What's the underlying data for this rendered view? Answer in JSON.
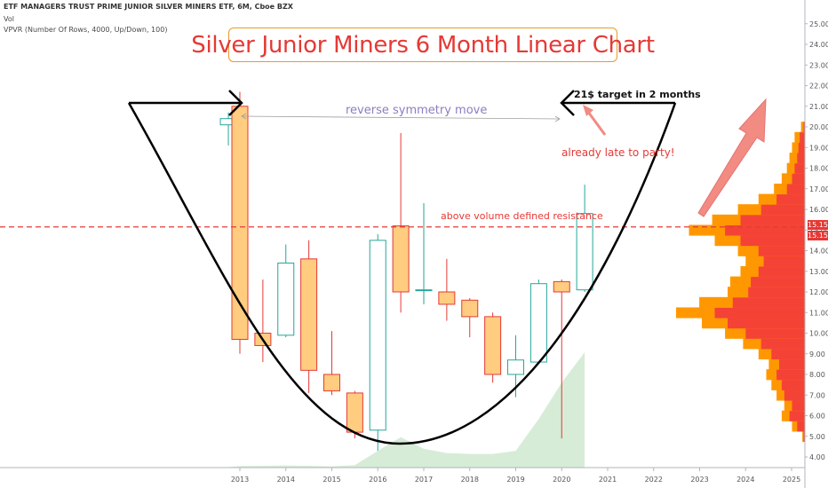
{
  "header": {
    "symbol_line": "ETF MANAGERS TRUST PRIME JUNIOR SILVER MINERS ETF, 6M, Cboe BZX",
    "volume_label": "Vol",
    "vpvr_label": "VPVR (Number Of Rows, 4000, Up/Down, 100)"
  },
  "title": "Silver Junior Miners 6 Month Linear Chart",
  "annotations": {
    "symmetry": "reverse symmetry move",
    "target": "21$ target in 2 months",
    "late": "already late to party!",
    "resistance": "above volume defined resistance"
  },
  "price_tags": [
    "15.15",
    "15.15"
  ],
  "colors": {
    "up_border": "#26a69a",
    "down_fill": "#ffcc80",
    "down_border": "#e53935",
    "resistance": "#e53935",
    "volume": "#c8e6c9",
    "vpvr_up": "#ff9800",
    "vpvr_down": "#f44336",
    "arrow": "#f28b82",
    "cup": "#000000"
  },
  "chart_data": {
    "type": "candlestick",
    "title": "Silver Junior Miners 6 Month Linear Chart",
    "x_ticks": [
      "2013",
      "2014",
      "2015",
      "2016",
      "2017",
      "2018",
      "2019",
      "2020",
      "2021",
      "2022",
      "2023",
      "2024",
      "2025"
    ],
    "y_ticks": [
      4,
      5,
      6,
      7,
      8,
      9,
      10,
      11,
      12,
      13,
      14,
      15,
      16,
      17,
      18,
      19,
      20,
      21,
      22,
      23,
      24,
      25
    ],
    "ylim": [
      3.6,
      25.6
    ],
    "xlim": [
      2011.8,
      2025.4
    ],
    "candles": [
      {
        "t": 2012.75,
        "open": 20.1,
        "high": 20.7,
        "low": 19.1,
        "close": 20.4
      },
      {
        "t": 2013.0,
        "open": 21.0,
        "high": 21.7,
        "low": 9.0,
        "close": 9.7
      },
      {
        "t": 2013.5,
        "open": 10.0,
        "high": 12.6,
        "low": 8.6,
        "close": 9.4
      },
      {
        "t": 2014.0,
        "open": 9.9,
        "high": 14.3,
        "low": 9.8,
        "close": 13.4
      },
      {
        "t": 2014.5,
        "open": 13.6,
        "high": 14.5,
        "low": 7.1,
        "close": 8.2
      },
      {
        "t": 2015.0,
        "open": 8.0,
        "high": 10.1,
        "low": 7.0,
        "close": 7.2
      },
      {
        "t": 2015.5,
        "open": 7.1,
        "high": 7.2,
        "low": 4.9,
        "close": 5.2
      },
      {
        "t": 2016.0,
        "open": 5.3,
        "high": 14.8,
        "low": 4.3,
        "close": 14.5
      },
      {
        "t": 2016.5,
        "open": 15.2,
        "high": 19.7,
        "low": 11.0,
        "close": 12.0
      },
      {
        "t": 2017.0,
        "open": 12.1,
        "high": 16.3,
        "low": 11.4,
        "close": 12.1
      },
      {
        "t": 2017.5,
        "open": 12.0,
        "high": 13.6,
        "low": 10.6,
        "close": 11.4
      },
      {
        "t": 2018.0,
        "open": 11.6,
        "high": 11.7,
        "low": 9.8,
        "close": 10.8
      },
      {
        "t": 2018.5,
        "open": 10.8,
        "high": 11.0,
        "low": 7.6,
        "close": 8.0
      },
      {
        "t": 2019.0,
        "open": 8.0,
        "high": 9.9,
        "low": 6.9,
        "close": 8.7
      },
      {
        "t": 2019.5,
        "open": 8.6,
        "high": 12.6,
        "low": 8.5,
        "close": 12.4
      },
      {
        "t": 2020.0,
        "open": 12.5,
        "high": 12.6,
        "low": 4.9,
        "close": 12.0
      },
      {
        "t": 2020.5,
        "open": 12.1,
        "high": 17.2,
        "low": 12.0,
        "close": 15.8
      }
    ],
    "volume": [
      {
        "t": 2012.75,
        "v": 0.02
      },
      {
        "t": 2013.0,
        "v": 0.05
      },
      {
        "t": 2013.5,
        "v": 0.06
      },
      {
        "t": 2014.0,
        "v": 0.07
      },
      {
        "t": 2014.5,
        "v": 0.06
      },
      {
        "t": 2015.0,
        "v": 0.04
      },
      {
        "t": 2015.5,
        "v": 0.08
      },
      {
        "t": 2016.0,
        "v": 0.55
      },
      {
        "t": 2016.5,
        "v": 1.0
      },
      {
        "t": 2017.0,
        "v": 0.62
      },
      {
        "t": 2017.5,
        "v": 0.48
      },
      {
        "t": 2018.0,
        "v": 0.45
      },
      {
        "t": 2018.5,
        "v": 0.45
      },
      {
        "t": 2019.0,
        "v": 0.55
      },
      {
        "t": 2019.5,
        "v": 1.6
      },
      {
        "t": 2020.0,
        "v": 2.8
      },
      {
        "t": 2020.5,
        "v": 3.8
      }
    ],
    "resistance_level": 15.15,
    "vpvr_profile": [
      {
        "price": 5.0,
        "up": 0.02,
        "down": 0.01
      },
      {
        "price": 5.5,
        "up": 0.1,
        "down": 0.06
      },
      {
        "price": 6.0,
        "up": 0.18,
        "down": 0.12
      },
      {
        "price": 6.5,
        "up": 0.16,
        "down": 0.1
      },
      {
        "price": 7.0,
        "up": 0.22,
        "down": 0.16
      },
      {
        "price": 7.5,
        "up": 0.26,
        "down": 0.18
      },
      {
        "price": 8.0,
        "up": 0.3,
        "down": 0.22
      },
      {
        "price": 8.5,
        "up": 0.28,
        "down": 0.2
      },
      {
        "price": 9.0,
        "up": 0.36,
        "down": 0.26
      },
      {
        "price": 9.5,
        "up": 0.48,
        "down": 0.34
      },
      {
        "price": 10.0,
        "up": 0.62,
        "down": 0.46
      },
      {
        "price": 10.5,
        "up": 0.8,
        "down": 0.6
      },
      {
        "price": 11.0,
        "up": 1.0,
        "down": 0.7
      },
      {
        "price": 11.5,
        "up": 0.82,
        "down": 0.56
      },
      {
        "price": 12.0,
        "up": 0.6,
        "down": 0.44
      },
      {
        "price": 12.5,
        "up": 0.58,
        "down": 0.42
      },
      {
        "price": 13.0,
        "up": 0.5,
        "down": 0.36
      },
      {
        "price": 13.5,
        "up": 0.46,
        "down": 0.32
      },
      {
        "price": 14.0,
        "up": 0.52,
        "down": 0.36
      },
      {
        "price": 14.5,
        "up": 0.7,
        "down": 0.5
      },
      {
        "price": 15.0,
        "up": 0.9,
        "down": 0.62
      },
      {
        "price": 15.5,
        "up": 0.72,
        "down": 0.5
      },
      {
        "price": 16.0,
        "up": 0.52,
        "down": 0.34
      },
      {
        "price": 16.5,
        "up": 0.36,
        "down": 0.22
      },
      {
        "price": 17.0,
        "up": 0.24,
        "down": 0.14
      },
      {
        "price": 17.5,
        "up": 0.18,
        "down": 0.1
      },
      {
        "price": 18.0,
        "up": 0.14,
        "down": 0.08
      },
      {
        "price": 18.5,
        "up": 0.12,
        "down": 0.06
      },
      {
        "price": 19.0,
        "up": 0.1,
        "down": 0.05
      },
      {
        "price": 19.5,
        "up": 0.08,
        "down": 0.04
      },
      {
        "price": 20.0,
        "up": 0.03,
        "down": 0.01
      }
    ]
  }
}
